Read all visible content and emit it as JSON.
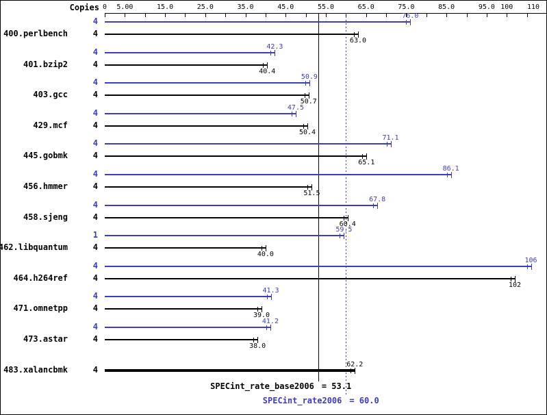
{
  "chart_data": {
    "type": "bar",
    "orientation": "horizontal",
    "copies_header": "Copies",
    "colors": {
      "peak": "#3c3cc0",
      "base": "#000000"
    },
    "axis": {
      "min": 0,
      "max": 110,
      "tick_interval": 5,
      "tick_labels": [
        "0",
        "5.00",
        "15.0",
        "25.0",
        "35.0",
        "45.0",
        "55.0",
        "65.0",
        "75.0",
        "85.0",
        "95.0",
        "100",
        "110"
      ],
      "tick_label_values": [
        0,
        5,
        15,
        25,
        35,
        45,
        55,
        65,
        75,
        85,
        95,
        100,
        110
      ]
    },
    "benchmarks": [
      {
        "name": "400.perlbench",
        "peak_copies": "4",
        "peak": 76.0,
        "peak_label": "76.0",
        "base_copies": "4",
        "base": 63.0,
        "base_label": "63.0"
      },
      {
        "name": "401.bzip2",
        "peak_copies": "4",
        "peak": 42.3,
        "peak_label": "42.3",
        "base_copies": "4",
        "base": 40.4,
        "base_label": "40.4"
      },
      {
        "name": "403.gcc",
        "peak_copies": "4",
        "peak": 50.9,
        "peak_label": "50.9",
        "base_copies": "4",
        "base": 50.7,
        "base_label": "50.7"
      },
      {
        "name": "429.mcf",
        "peak_copies": "4",
        "peak": 47.5,
        "peak_label": "47.5",
        "base_copies": "4",
        "base": 50.4,
        "base_label": "50.4"
      },
      {
        "name": "445.gobmk",
        "peak_copies": "4",
        "peak": 71.1,
        "peak_label": "71.1",
        "base_copies": "4",
        "base": 65.1,
        "base_label": "65.1"
      },
      {
        "name": "456.hmmer",
        "peak_copies": "4",
        "peak": 86.1,
        "peak_label": "86.1",
        "base_copies": "4",
        "base": 51.5,
        "base_label": "51.5"
      },
      {
        "name": "458.sjeng",
        "peak_copies": "4",
        "peak": 67.8,
        "peak_label": "67.8",
        "base_copies": "4",
        "base": 60.4,
        "base_label": "60.4"
      },
      {
        "name": "462.libquantum",
        "peak_copies": "1",
        "peak": 59.5,
        "peak_label": "59.5",
        "base_copies": "4",
        "base": 40.0,
        "base_label": "40.0"
      },
      {
        "name": "464.h264ref",
        "peak_copies": "4",
        "peak": 106,
        "peak_label": "106",
        "base_copies": "4",
        "base": 102,
        "base_label": "102"
      },
      {
        "name": "471.omnetpp",
        "peak_copies": "4",
        "peak": 41.3,
        "peak_label": "41.3",
        "base_copies": "4",
        "base": 39.0,
        "base_label": "39.0"
      },
      {
        "name": "473.astar",
        "peak_copies": "4",
        "peak": 41.2,
        "peak_label": "41.2",
        "base_copies": "4",
        "base": 38.0,
        "base_label": "38.0"
      },
      {
        "name": "483.xalancbmk",
        "base_copies": "4",
        "base": 62.2,
        "base_label": "62.2",
        "thick": true
      }
    ],
    "reference_lines": [
      {
        "name": "SPECint_rate_base2006",
        "value": 53.1,
        "value_label": "= 53.1",
        "style": "solid",
        "color": "#000000"
      },
      {
        "name": "SPECint_rate2006",
        "value": 60.0,
        "value_label": "= 60.0",
        "style": "dotted",
        "color": "#3c3cc0"
      }
    ]
  }
}
